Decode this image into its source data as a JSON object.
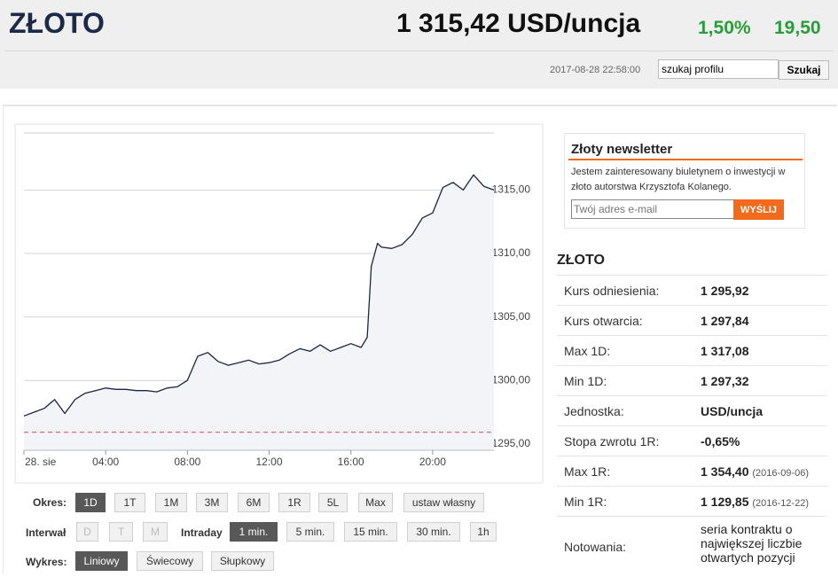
{
  "header": {
    "title": "ZŁOTO",
    "price": "1 315,42 USD/uncja",
    "change_pct": "1,50%",
    "change_abs": "19,50",
    "timestamp": "2017-08-28 22:58:00",
    "search_placeholder": "szukaj profilu",
    "search_button": "Szukaj"
  },
  "chart_data": {
    "type": "line",
    "color": "#1b2540",
    "fill": "#f2f4f8",
    "x": [
      0,
      0.5,
      1,
      1.5,
      2,
      2.5,
      3,
      3.5,
      4,
      4.5,
      5,
      5.5,
      6,
      6.5,
      7,
      7.5,
      8,
      8.5,
      9,
      9.5,
      10,
      10.5,
      11,
      11.5,
      12,
      12.5,
      13,
      13.5,
      14,
      14.5,
      15,
      15.5,
      16,
      16.5,
      16.8,
      17,
      17.3,
      17.5,
      18,
      18.5,
      19,
      19.5,
      20,
      20.5,
      21,
      21.5,
      22,
      22.5,
      23
    ],
    "values": [
      1297.2,
      1297.5,
      1297.8,
      1298.5,
      1297.4,
      1298.5,
      1299,
      1299.2,
      1299.4,
      1299.3,
      1299.3,
      1299.2,
      1299.2,
      1299.1,
      1299.4,
      1299.5,
      1300,
      1301.9,
      1302.2,
      1301.5,
      1301.2,
      1301.4,
      1301.6,
      1301.3,
      1301.4,
      1301.6,
      1302.1,
      1302.5,
      1302.3,
      1302.8,
      1302.3,
      1302.6,
      1302.9,
      1302.6,
      1303.4,
      1309,
      1310.8,
      1310.5,
      1310.4,
      1310.7,
      1311.5,
      1312.8,
      1313.2,
      1315.2,
      1315.6,
      1315,
      1316.2,
      1315.3,
      1315
    ],
    "xlim": [
      0,
      23
    ],
    "xticks": [
      {
        "value": 0,
        "label": "28. sie"
      },
      {
        "value": 4,
        "label": "04:00"
      },
      {
        "value": 8,
        "label": "08:00"
      },
      {
        "value": 12,
        "label": "12:00"
      },
      {
        "value": 16,
        "label": "16:00"
      },
      {
        "value": 20,
        "label": "20:00"
      }
    ],
    "ylim": [
      1294.5,
      1319.5
    ],
    "yticks": [
      {
        "value": 1295,
        "label": "1295,00"
      },
      {
        "value": 1300,
        "label": "1300,00"
      },
      {
        "value": 1305,
        "label": "1305,00"
      },
      {
        "value": 1310,
        "label": "1310,00"
      },
      {
        "value": 1315,
        "label": "1315,00"
      }
    ],
    "grid": true,
    "reference_line": 1295.92,
    "reference_color": "#e05a5a"
  },
  "controls": {
    "period": {
      "label": "Okres:",
      "options": [
        "1D",
        "1T",
        "1M",
        "3M",
        "6M",
        "1R",
        "5L",
        "Max",
        "ustaw własny"
      ]
    },
    "interval": {
      "label": "Interwał",
      "options": [
        "D",
        "T",
        "M"
      ]
    },
    "intraday": {
      "label": "Intraday",
      "options": [
        "1 min.",
        "5 min.",
        "15 min.",
        "30 min.",
        "1h"
      ]
    },
    "chart_style": {
      "label": "Wykres:",
      "options": [
        "Liniowy",
        "Świecowy",
        "Słupkowy"
      ]
    }
  },
  "newsletter": {
    "title": "Złoty newsletter",
    "text": "Jestem zainteresowany biuletynem o inwestycji w złoto autorstwa Krzysztofa Kolanego.",
    "placeholder": "Twój adres e-mail",
    "button": "WYŚLIJ"
  },
  "profile": {
    "title": "ZŁOTO",
    "rows": [
      {
        "label": "Kurs odniesienia:",
        "value": "1 295,92"
      },
      {
        "label": "Kurs otwarcia:",
        "value": "1 297,84"
      },
      {
        "label": "Max 1D:",
        "value": "1 317,08"
      },
      {
        "label": "Min 1D:",
        "value": "1 297,32"
      },
      {
        "label": "Jednostka:",
        "value": "USD/uncja"
      },
      {
        "label": "Stopa zwrotu 1R:",
        "value": "-0,65%"
      },
      {
        "label": "Max 1R:",
        "value": "1 354,40",
        "note": "(2016-09-06)"
      },
      {
        "label": "Min 1R:",
        "value": "1 129,85",
        "note": "(2016-12-22)"
      },
      {
        "label": "Notowania:",
        "value": "seria kontraktu o największej liczbie otwartych pozycji"
      }
    ]
  }
}
